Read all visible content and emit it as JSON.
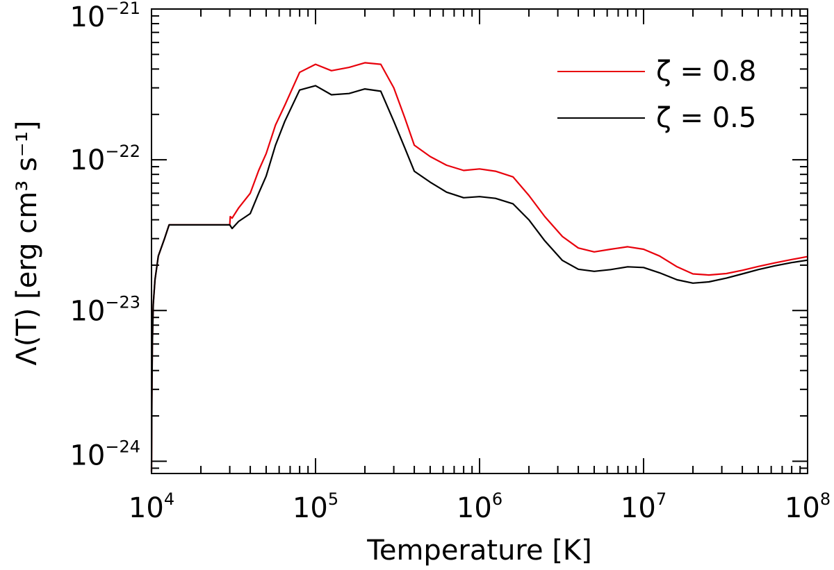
{
  "chart_data": {
    "type": "line",
    "title": "",
    "xlabel": "Temperature [K]",
    "ylabel": "Λ(T) [erg cm³ s⁻¹]",
    "xscale": "log",
    "yscale": "log",
    "xlim": [
      10000,
      100000000
    ],
    "ylim": [
      8.3e-25,
      1e-21
    ],
    "grid": false,
    "legend_position": "top-right",
    "x_ticks": [
      {
        "base": "10",
        "exp": "4",
        "value": 10000
      },
      {
        "base": "10",
        "exp": "5",
        "value": 100000
      },
      {
        "base": "10",
        "exp": "6",
        "value": 1000000
      },
      {
        "base": "10",
        "exp": "7",
        "value": 10000000
      },
      {
        "base": "10",
        "exp": "8",
        "value": 100000000
      }
    ],
    "y_ticks": [
      {
        "base": "10",
        "exp": "−24",
        "value": 1e-24
      },
      {
        "base": "10",
        "exp": "−23",
        "value": 1e-23
      },
      {
        "base": "10",
        "exp": "−22",
        "value": 1e-22
      },
      {
        "base": "10",
        "exp": "−21",
        "value": 1e-21
      }
    ],
    "series": [
      {
        "name": "ζ = 0.8",
        "color": "#e8000b",
        "x": [
          10000,
          10050,
          10120,
          10250,
          10500,
          11000,
          12000,
          12800,
          30000,
          30200,
          31000,
          34000,
          40000,
          45000,
          50000,
          57000,
          65000,
          80000,
          100000,
          125000,
          160000,
          200000,
          250000,
          300000,
          350000,
          400000,
          500000,
          630000,
          800000,
          1000000,
          1250000,
          1600000,
          2000000,
          2500000,
          3200000,
          4000000,
          5000000,
          6300000,
          8000000,
          10000000,
          12500000,
          16000000,
          20000000,
          25000000,
          32000000,
          40000000,
          50000000,
          63000000,
          80000000,
          100000000
        ],
        "y": [
          8.5e-25,
          2.5e-24,
          6e-24,
          1.1e-23,
          1.6e-23,
          2.3e-23,
          3e-23,
          3.7e-23,
          3.7e-23,
          4.2e-23,
          4.1e-23,
          4.8e-23,
          6e-23,
          8.5e-23,
          1.1e-22,
          1.7e-22,
          2.3e-22,
          3.8e-22,
          4.3e-22,
          3.9e-22,
          4.1e-22,
          4.4e-22,
          4.3e-22,
          3e-22,
          1.9e-22,
          1.25e-22,
          1.05e-22,
          9.2e-23,
          8.5e-23,
          8.7e-23,
          8.4e-23,
          7.7e-23,
          5.8e-23,
          4.2e-23,
          3.1e-23,
          2.6e-23,
          2.45e-23,
          2.55e-23,
          2.65e-23,
          2.55e-23,
          2.3e-23,
          1.95e-23,
          1.75e-23,
          1.72e-23,
          1.76e-23,
          1.85e-23,
          1.96e-23,
          2.07e-23,
          2.18e-23,
          2.28e-23
        ]
      },
      {
        "name": "ζ = 0.5",
        "color": "#000000",
        "x": [
          10000,
          10050,
          10120,
          10250,
          10500,
          11000,
          12000,
          12800,
          30000,
          31000,
          34000,
          40000,
          45000,
          50000,
          57000,
          65000,
          80000,
          100000,
          125000,
          160000,
          200000,
          250000,
          300000,
          350000,
          400000,
          500000,
          630000,
          800000,
          1000000,
          1250000,
          1600000,
          2000000,
          2500000,
          3200000,
          4000000,
          5000000,
          6300000,
          8000000,
          10000000,
          12500000,
          16000000,
          20000000,
          25000000,
          32000000,
          40000000,
          50000000,
          63000000,
          80000000,
          100000000
        ],
        "y": [
          8.5e-25,
          2.5e-24,
          6e-24,
          1.1e-23,
          1.6e-23,
          2.3e-23,
          3e-23,
          3.7e-23,
          3.7e-23,
          3.5e-23,
          3.9e-23,
          4.4e-23,
          6e-23,
          7.8e-23,
          1.25e-22,
          1.8e-22,
          2.9e-22,
          3.1e-22,
          2.7e-22,
          2.75e-22,
          2.95e-22,
          2.85e-22,
          1.8e-22,
          1.2e-22,
          8.4e-23,
          7.1e-23,
          6.1e-23,
          5.6e-23,
          5.7e-23,
          5.55e-23,
          5.1e-23,
          4e-23,
          2.9e-23,
          2.15e-23,
          1.88e-23,
          1.82e-23,
          1.87e-23,
          1.95e-23,
          1.93e-23,
          1.78e-23,
          1.6e-23,
          1.52e-23,
          1.55e-23,
          1.64e-23,
          1.75e-23,
          1.87e-23,
          1.98e-23,
          2.08e-23,
          2.16e-23
        ]
      }
    ]
  }
}
